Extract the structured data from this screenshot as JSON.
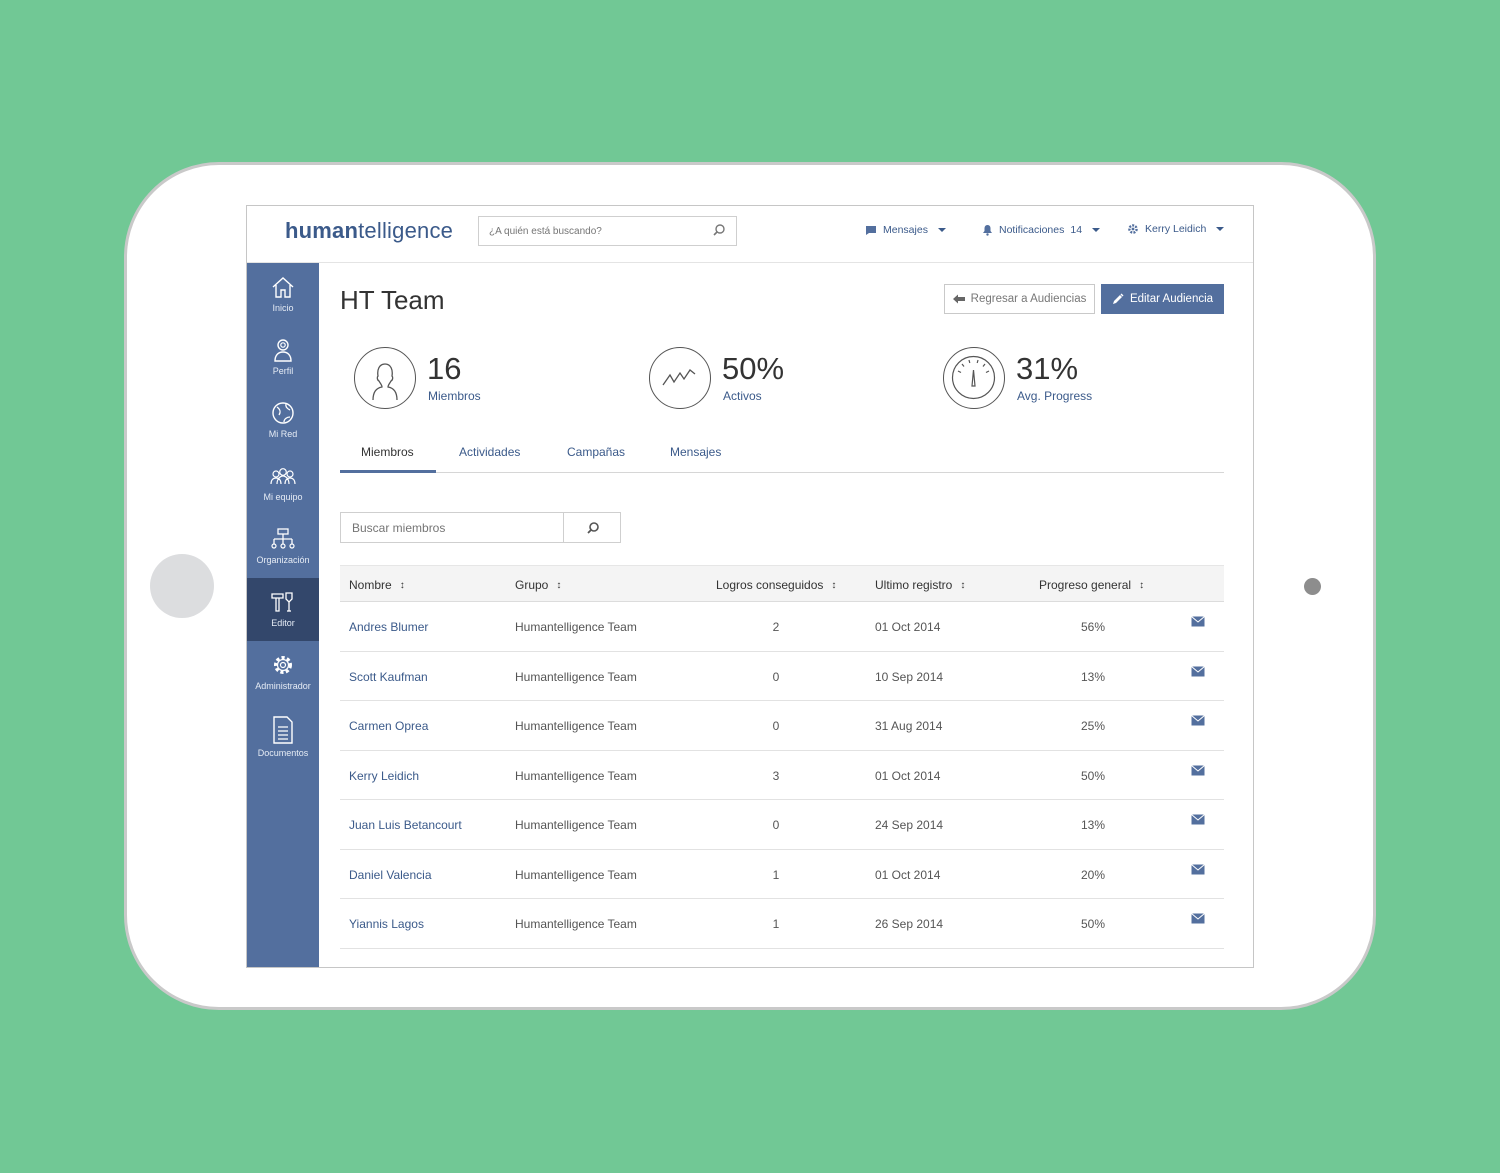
{
  "header": {
    "logo_bold": "human",
    "logo_rest": "telligence",
    "search_placeholder": "¿A quién está buscando?",
    "messages_label": "Mensajes",
    "notifications_label": "Notificaciones",
    "notifications_count": "14",
    "user_name": "Kerry Leidich"
  },
  "sidebar": {
    "items": [
      {
        "label": "Inicio",
        "icon": "home-icon"
      },
      {
        "label": "Perfil",
        "icon": "profile-icon"
      },
      {
        "label": "Mi Red",
        "icon": "globe-icon"
      },
      {
        "label": "Mi equipo",
        "icon": "team-icon"
      },
      {
        "label": "Organización",
        "icon": "org-chart-icon"
      },
      {
        "label": "Editor",
        "icon": "editor-tools-icon",
        "active": true
      },
      {
        "label": "Administrador",
        "icon": "gear-icon"
      },
      {
        "label": "Documentos",
        "icon": "document-icon"
      }
    ]
  },
  "main": {
    "title": "HT Team",
    "back_button": "Regresar a Audiencias",
    "edit_button": "Editar Audiencia",
    "stats": [
      {
        "value": "16",
        "label": "Miembros",
        "icon": "person-icon"
      },
      {
        "value": "50%",
        "label": "Activos",
        "icon": "activity-chart-icon"
      },
      {
        "value": "31%",
        "label": "Avg. Progress",
        "icon": "gauge-icon"
      }
    ],
    "tabs": [
      "Miembros",
      "Actividades",
      "Campañas",
      "Mensajes"
    ],
    "active_tab": "Miembros",
    "member_search_placeholder": "Buscar miembros"
  },
  "table": {
    "columns": [
      "Nombre",
      "Grupo",
      "Logros conseguidos",
      "Ultimo registro",
      "Progreso general"
    ],
    "rows": [
      {
        "nombre": "Andres Blumer",
        "grupo": "Humantelligence Team",
        "logros": "2",
        "registro": "01 Oct 2014",
        "progreso": "56%"
      },
      {
        "nombre": "Scott Kaufman",
        "grupo": "Humantelligence Team",
        "logros": "0",
        "registro": "10 Sep 2014",
        "progreso": "13%"
      },
      {
        "nombre": "Carmen Oprea",
        "grupo": "Humantelligence Team",
        "logros": "0",
        "registro": "31 Aug 2014",
        "progreso": "25%"
      },
      {
        "nombre": "Kerry Leidich",
        "grupo": "Humantelligence Team",
        "logros": "3",
        "registro": "01 Oct 2014",
        "progreso": "50%"
      },
      {
        "nombre": "Juan Luis Betancourt",
        "grupo": "Humantelligence Team",
        "logros": "0",
        "registro": "24 Sep 2014",
        "progreso": "13%"
      },
      {
        "nombre": "Daniel Valencia",
        "grupo": "Humantelligence Team",
        "logros": "1",
        "registro": "01 Oct 2014",
        "progreso": "20%"
      },
      {
        "nombre": "Yiannis Lagos",
        "grupo": "Humantelligence Team",
        "logros": "1",
        "registro": "26 Sep 2014",
        "progreso": "50%"
      }
    ]
  },
  "colors": {
    "background": "#71c895",
    "sidebar": "#536f9e",
    "sidebar_active": "#33476b",
    "accent": "#3b5a8a"
  }
}
